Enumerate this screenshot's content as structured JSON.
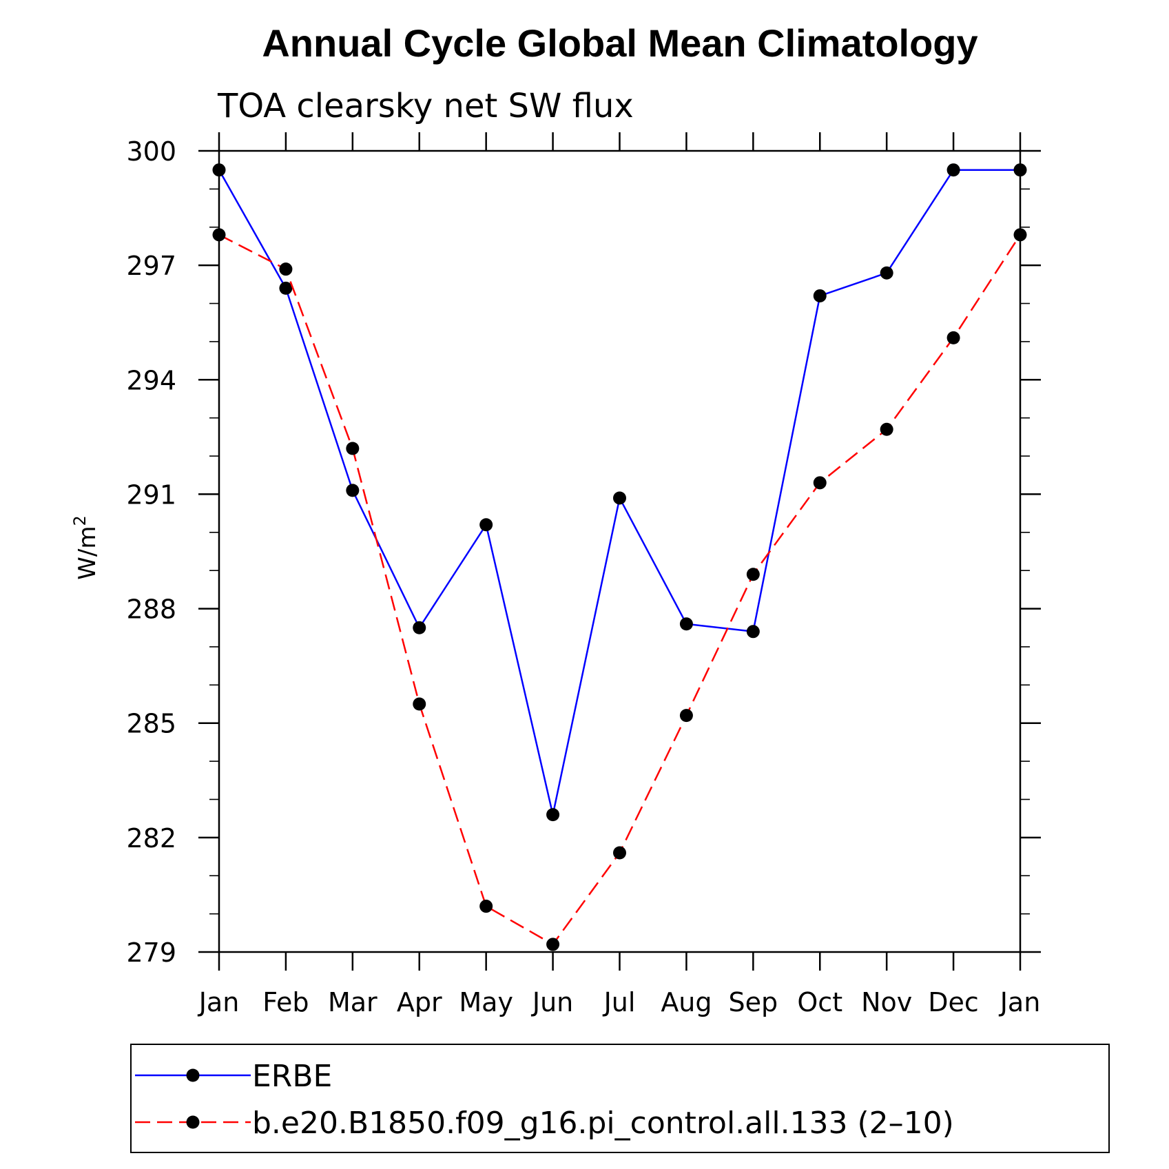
{
  "chart_data": {
    "type": "line",
    "title": "Annual Cycle Global Mean Climatology",
    "subtitle": "TOA clearsky net SW flux",
    "ylabel": "W/m",
    "ylabel_sup": "2",
    "xlabel": "",
    "categories": [
      "Jan",
      "Feb",
      "Mar",
      "Apr",
      "May",
      "Jun",
      "Jul",
      "Aug",
      "Sep",
      "Oct",
      "Nov",
      "Dec",
      "Jan"
    ],
    "ylim": [
      279,
      300
    ],
    "yticks": [
      "279",
      "282",
      "285",
      "288",
      "291",
      "294",
      "297",
      "300"
    ],
    "legend_position": "bottom",
    "series": [
      {
        "name": "ERBE",
        "color": "#0000ff",
        "dash": "solid",
        "marker": "circle",
        "values": [
          299.5,
          296.4,
          291.1,
          287.5,
          290.2,
          282.6,
          290.9,
          287.6,
          287.4,
          296.2,
          296.8,
          299.5,
          299.5
        ]
      },
      {
        "name": "b.e20.B1850.f09_g16.pi_control.all.133 (2–10)",
        "color": "#ff0000",
        "dash": "dashed",
        "marker": "circle",
        "values": [
          297.8,
          296.9,
          292.2,
          285.5,
          280.2,
          279.2,
          281.6,
          285.2,
          288.9,
          291.3,
          292.7,
          295.1,
          297.8
        ]
      }
    ]
  }
}
